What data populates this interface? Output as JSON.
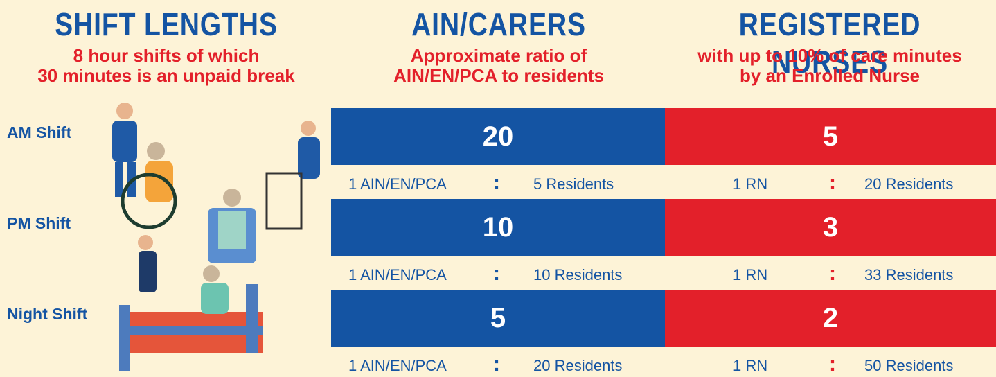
{
  "header": {
    "columns": [
      {
        "title": "SHIFT LENGTHS",
        "subtitle": [
          "8 hour shifts of which",
          "30 minutes is an unpaid break"
        ]
      },
      {
        "title": "AIN/CARERS",
        "subtitle": [
          "Approximate ratio of",
          "AIN/EN/PCA to residents"
        ]
      },
      {
        "title": "REGISTERED NURSES",
        "subtitle": [
          "with up to 10% of care minutes",
          "by an Enrolled Nurse"
        ]
      }
    ]
  },
  "rows": [
    {
      "label": "AM Shift",
      "ain": {
        "count": 20,
        "staff": "1 AIN/EN/PCA",
        "separator": ":",
        "residents": "5 Residents"
      },
      "rn": {
        "count": 5,
        "staff": "1 RN",
        "separator": ":",
        "residents": "20 Residents"
      }
    },
    {
      "label": "PM Shift",
      "ain": {
        "count": 10,
        "staff": "1 AIN/EN/PCA",
        "separator": ":",
        "residents": "10 Residents"
      },
      "rn": {
        "count": 3,
        "staff": "1 RN",
        "separator": ":",
        "residents": "33 Residents"
      }
    },
    {
      "label": "Night Shift",
      "ain": {
        "count": 5,
        "staff": "1 AIN/EN/PCA",
        "separator": ":",
        "residents": "20 Residents"
      },
      "rn": {
        "count": 2,
        "staff": "1 RN",
        "separator": ":",
        "residents": "50 Residents"
      }
    }
  ]
}
